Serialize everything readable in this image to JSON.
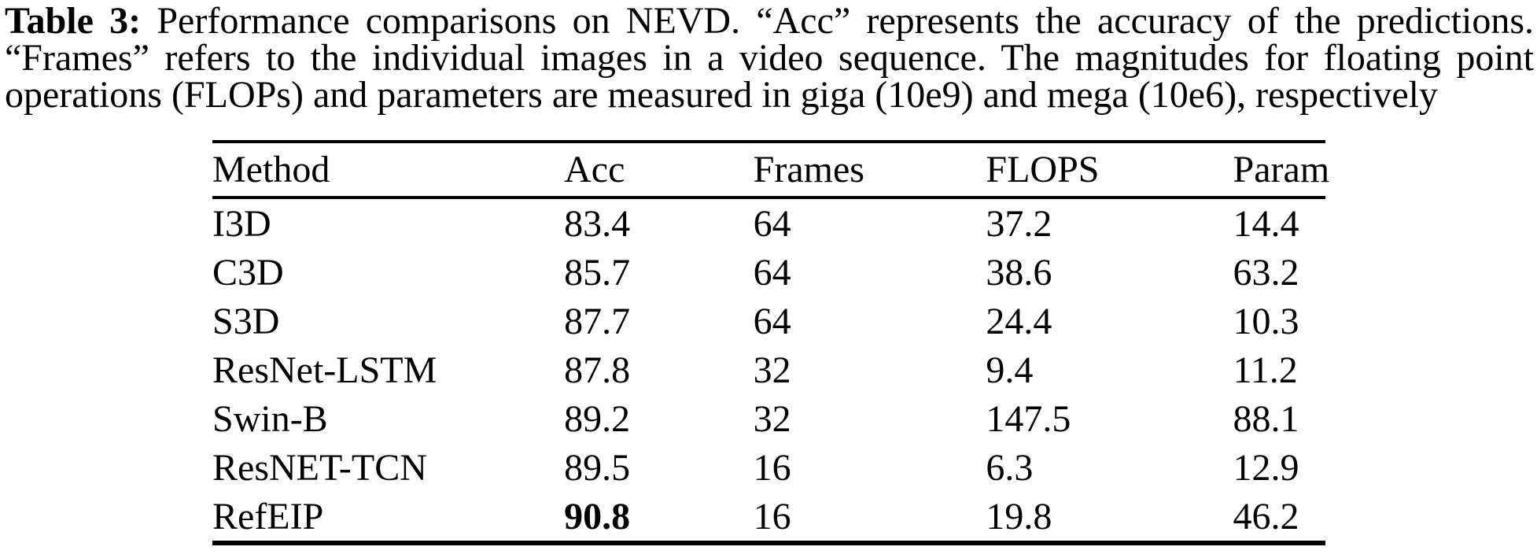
{
  "page": {
    "background_color": "#ffffff",
    "text_color": "#000000",
    "rule_color": "#000000"
  },
  "caption": {
    "label": "Table 3:",
    "line1_rest": "Performance comparisons on NEVD. “Acc” represents the accuracy of the predictions.",
    "line2": "“Frames” refers to the individual images in a video sequence. The magnitudes for floating point",
    "line3": "operations (FLOPs) and parameters are measured in giga (10e9) and mega (10e6), respectively"
  },
  "table": {
    "headers": [
      "Method",
      "Acc",
      "Frames",
      "FLOPS",
      "Param"
    ],
    "rows": [
      [
        "I3D",
        "83.4",
        "64",
        "37.2",
        "14.4"
      ],
      [
        "C3D",
        "85.7",
        "64",
        "38.6",
        "63.2"
      ],
      [
        "S3D",
        "87.7",
        "64",
        "24.4",
        "10.3"
      ],
      [
        "ResNet-LSTM",
        "87.8",
        "32",
        "9.4",
        "11.2"
      ],
      [
        "Swin-B",
        "89.2",
        "32",
        "147.5",
        "88.1"
      ],
      [
        "ResNET-TCN",
        "89.5",
        "16",
        "6.3",
        "12.9"
      ],
      [
        "RefEIP",
        "90.8",
        "16",
        "19.8",
        "46.2"
      ]
    ],
    "emphasis": {
      "row": "RefEIP",
      "column": "Acc",
      "value": "90.8",
      "style": "bold"
    }
  },
  "chart_data": {
    "type": "table",
    "title": "Performance comparisons on NEVD",
    "columns": [
      "Method",
      "Acc",
      "Frames",
      "FLOPS",
      "Param"
    ],
    "rows": [
      {
        "Method": "I3D",
        "Acc": 83.4,
        "Frames": 64,
        "FLOPS": 37.2,
        "Param": 14.4
      },
      {
        "Method": "C3D",
        "Acc": 85.7,
        "Frames": 64,
        "FLOPS": 38.6,
        "Param": 63.2
      },
      {
        "Method": "S3D",
        "Acc": 87.7,
        "Frames": 64,
        "FLOPS": 24.4,
        "Param": 10.3
      },
      {
        "Method": "ResNet-LSTM",
        "Acc": 87.8,
        "Frames": 32,
        "FLOPS": 9.4,
        "Param": 11.2
      },
      {
        "Method": "Swin-B",
        "Acc": 89.2,
        "Frames": 32,
        "FLOPS": 147.5,
        "Param": 88.1
      },
      {
        "Method": "ResNET-TCN",
        "Acc": 89.5,
        "Frames": 16,
        "FLOPS": 6.3,
        "Param": 12.9
      },
      {
        "Method": "RefEIP",
        "Acc": 90.8,
        "Frames": 16,
        "FLOPS": 19.8,
        "Param": 46.2
      }
    ],
    "units": {
      "FLOPS": "giga (10e9)",
      "Param": "mega (10e6)",
      "Acc": "percent accuracy"
    },
    "best_row": "RefEIP"
  }
}
